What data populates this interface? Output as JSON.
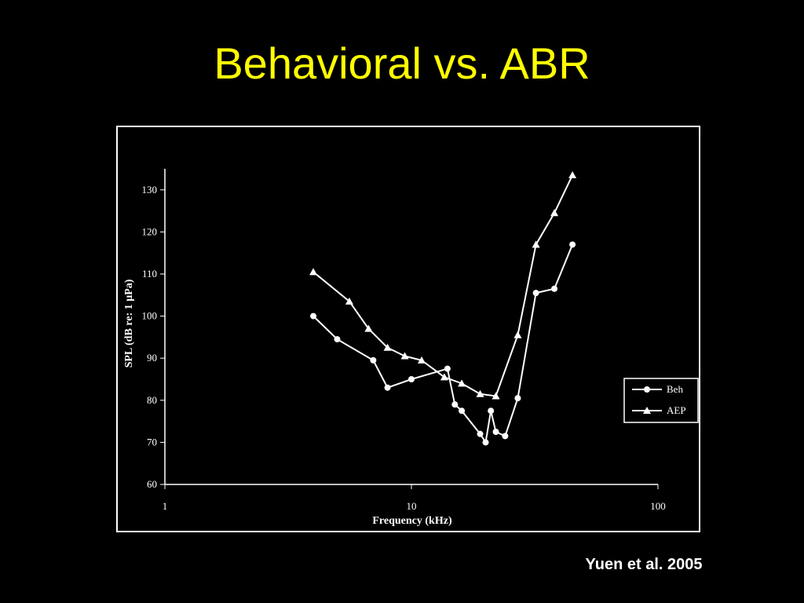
{
  "chart_data": {
    "type": "line",
    "title": "Behavioral vs. ABR",
    "xlabel": "Frequency (kHz)",
    "ylabel": "SPL (dB re: 1 µPa)",
    "source": "Yuen et al. 2005",
    "xscale": "log",
    "xlim": [
      1,
      100
    ],
    "xticks": [
      1,
      10,
      100
    ],
    "ylim": [
      60,
      135
    ],
    "yticks": [
      60,
      70,
      80,
      90,
      100,
      110,
      120,
      130
    ],
    "legend": "right",
    "series": [
      {
        "name": "Beh",
        "color": "#ffffff",
        "marker": "circle",
        "x": [
          4,
          5,
          7,
          8,
          10,
          14,
          15,
          16,
          19,
          20,
          21,
          22,
          24,
          27,
          32,
          38,
          45
        ],
        "values": [
          100,
          94.5,
          89.5,
          83,
          85,
          87.5,
          79,
          77.5,
          72,
          70,
          77.5,
          72.5,
          71.5,
          80.5,
          105.5,
          106.5,
          117
        ]
      },
      {
        "name": "AEP",
        "color": "#ffffff",
        "marker": "triangle",
        "x": [
          4,
          5.6,
          6.7,
          8,
          9.4,
          11,
          13.6,
          16,
          19,
          22,
          27,
          32,
          38,
          45
        ],
        "values": [
          110.5,
          103.5,
          97,
          92.5,
          90.5,
          89.5,
          85.5,
          84,
          81.5,
          81,
          95.5,
          117,
          124.5,
          133.5
        ]
      }
    ]
  }
}
